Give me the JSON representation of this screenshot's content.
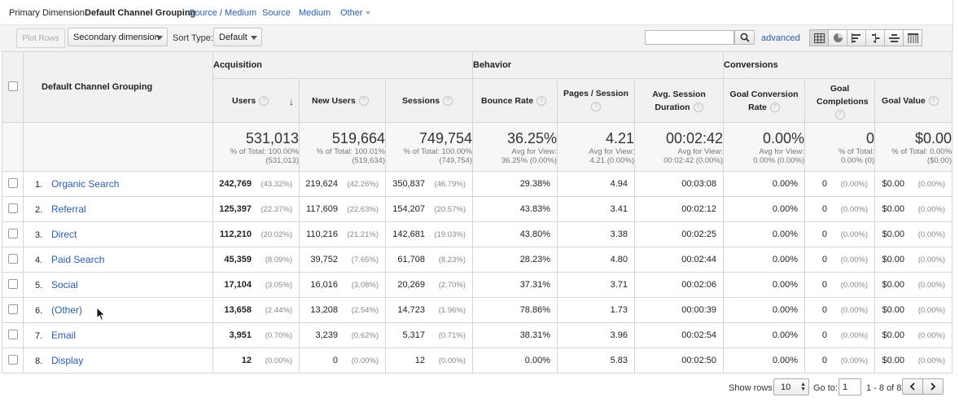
{
  "primary_dimension": {
    "label": "Primary Dimension:",
    "current": "Default Channel Grouping",
    "options": [
      "Source / Medium",
      "Source",
      "Medium",
      "Other"
    ]
  },
  "toolbar": {
    "plot_rows": "Plot Rows",
    "secondary_dimension": "Secondary dimension",
    "sort_type_label": "Sort Type:",
    "sort_type_value": "Default",
    "search_value": "",
    "advanced": "advanced",
    "view_icons": [
      "table-icon",
      "pie-icon",
      "bar-icon",
      "comparison-icon",
      "term-cloud-icon",
      "pivot-icon"
    ]
  },
  "table": {
    "dimension_header": "Default Channel Grouping",
    "groups": [
      "Acquisition",
      "Behavior",
      "Conversions"
    ],
    "columns": [
      "Users",
      "New Users",
      "Sessions",
      "Bounce Rate",
      "Pages / Session",
      "Avg. Session Duration",
      "Goal Conversion Rate",
      "Goal Completions",
      "Goal Value"
    ],
    "totals": [
      {
        "value": "531,013",
        "sub1": "% of Total: 100.00%",
        "sub2": "(531,013)"
      },
      {
        "value": "519,664",
        "sub1": "% of Total: 100.01%",
        "sub2": "(519,634)"
      },
      {
        "value": "749,754",
        "sub1": "% of Total: 100.00%",
        "sub2": "(749,754)"
      },
      {
        "value": "36.25%",
        "sub1": "Avg for View:",
        "sub2": "36.25% (0.00%)"
      },
      {
        "value": "4.21",
        "sub1": "Avg for View:",
        "sub2": "4.21 (0.00%)"
      },
      {
        "value": "00:02:42",
        "sub1": "Avg for View:",
        "sub2": "00:02:42 (0.00%)"
      },
      {
        "value": "0.00%",
        "sub1": "Avg for View:",
        "sub2": "0.00% (0.00%)"
      },
      {
        "value": "0",
        "sub1": "% of Total:",
        "sub2": "0.00% (0)"
      },
      {
        "value": "$0.00",
        "sub1": "% of Total: 0.00%",
        "sub2": "($0.00)"
      }
    ],
    "rows": [
      {
        "rank": "1.",
        "name": "Organic Search",
        "users": "242,769",
        "users_pct": "(43.32%)",
        "new_users": "219,624",
        "new_users_pct": "(42.26%)",
        "sessions": "350,837",
        "sessions_pct": "(46.79%)",
        "bounce": "29.38%",
        "pages": "4.94",
        "duration": "00:03:08",
        "conv_rate": "0.00%",
        "completions": "0",
        "completions_pct": "(0.00%)",
        "goal_value": "$0.00",
        "goal_value_pct": "(0.00%)"
      },
      {
        "rank": "2.",
        "name": "Referral",
        "users": "125,397",
        "users_pct": "(22.37%)",
        "new_users": "117,609",
        "new_users_pct": "(22.63%)",
        "sessions": "154,207",
        "sessions_pct": "(20.57%)",
        "bounce": "43.83%",
        "pages": "3.41",
        "duration": "00:02:12",
        "conv_rate": "0.00%",
        "completions": "0",
        "completions_pct": "(0.00%)",
        "goal_value": "$0.00",
        "goal_value_pct": "(0.00%)"
      },
      {
        "rank": "3.",
        "name": "Direct",
        "users": "112,210",
        "users_pct": "(20.02%)",
        "new_users": "110,216",
        "new_users_pct": "(21.21%)",
        "sessions": "142,681",
        "sessions_pct": "(19.03%)",
        "bounce": "43.80%",
        "pages": "3.38",
        "duration": "00:02:25",
        "conv_rate": "0.00%",
        "completions": "0",
        "completions_pct": "(0.00%)",
        "goal_value": "$0.00",
        "goal_value_pct": "(0.00%)"
      },
      {
        "rank": "4.",
        "name": "Paid Search",
        "users": "45,359",
        "users_pct": "(8.09%)",
        "new_users": "39,752",
        "new_users_pct": "(7.65%)",
        "sessions": "61,708",
        "sessions_pct": "(8.23%)",
        "bounce": "28.23%",
        "pages": "4.80",
        "duration": "00:02:44",
        "conv_rate": "0.00%",
        "completions": "0",
        "completions_pct": "(0.00%)",
        "goal_value": "$0.00",
        "goal_value_pct": "(0.00%)"
      },
      {
        "rank": "5.",
        "name": "Social",
        "users": "17,104",
        "users_pct": "(3.05%)",
        "new_users": "16,016",
        "new_users_pct": "(3.08%)",
        "sessions": "20,269",
        "sessions_pct": "(2.70%)",
        "bounce": "37.31%",
        "pages": "3.71",
        "duration": "00:02:06",
        "conv_rate": "0.00%",
        "completions": "0",
        "completions_pct": "(0.00%)",
        "goal_value": "$0.00",
        "goal_value_pct": "(0.00%)"
      },
      {
        "rank": "6.",
        "name": "(Other)",
        "users": "13,658",
        "users_pct": "(2.44%)",
        "new_users": "13,208",
        "new_users_pct": "(2.54%)",
        "sessions": "14,723",
        "sessions_pct": "(1.96%)",
        "bounce": "78.86%",
        "pages": "1.73",
        "duration": "00:00:39",
        "conv_rate": "0.00%",
        "completions": "0",
        "completions_pct": "(0.00%)",
        "goal_value": "$0.00",
        "goal_value_pct": "(0.00%)"
      },
      {
        "rank": "7.",
        "name": "Email",
        "users": "3,951",
        "users_pct": "(0.70%)",
        "new_users": "3,239",
        "new_users_pct": "(0.62%)",
        "sessions": "5,317",
        "sessions_pct": "(0.71%)",
        "bounce": "38.31%",
        "pages": "3.96",
        "duration": "00:02:54",
        "conv_rate": "0.00%",
        "completions": "0",
        "completions_pct": "(0.00%)",
        "goal_value": "$0.00",
        "goal_value_pct": "(0.00%)"
      },
      {
        "rank": "8.",
        "name": "Display",
        "users": "12",
        "users_pct": "(0.00%)",
        "new_users": "0",
        "new_users_pct": "(0.00%)",
        "sessions": "12",
        "sessions_pct": "(0.00%)",
        "bounce": "0.00%",
        "pages": "5.83",
        "duration": "00:02:50",
        "conv_rate": "0.00%",
        "completions": "0",
        "completions_pct": "(0.00%)",
        "goal_value": "$0.00",
        "goal_value_pct": "(0.00%)"
      }
    ]
  },
  "footer": {
    "show_rows_label": "Show rows:",
    "show_rows_value": "10",
    "goto_label": "Go to:",
    "goto_value": "1",
    "range": "1 - 8 of 8"
  },
  "colors": {
    "link": "#2a5db0",
    "header_bg": "#f1f1f1",
    "toolbar_bg": "#f3f3f3"
  }
}
